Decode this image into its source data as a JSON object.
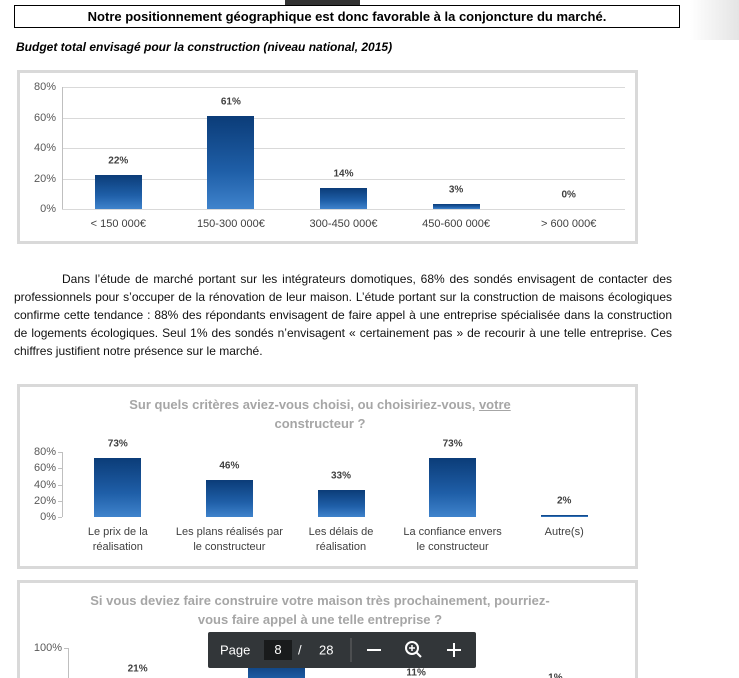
{
  "header": {
    "banner": "Notre positionnement géographique est donc favorable à la conjoncture du marché."
  },
  "chart1": {
    "type": "bar",
    "title": "Budget total envisagé pour la construction (niveau national, 2015)",
    "categories": [
      "< 150 000€",
      "150-300 000€",
      "300-450 000€",
      "450-600 000€",
      "> 600 000€"
    ],
    "values": [
      22,
      61,
      14,
      3,
      0
    ],
    "value_labels": [
      "22%",
      "61%",
      "14%",
      "3%",
      "0%"
    ],
    "ylim": [
      0,
      80
    ],
    "yticks": [
      {
        "value": 0,
        "label": "0%"
      },
      {
        "value": 20,
        "label": "20%"
      },
      {
        "value": 40,
        "label": "40%"
      },
      {
        "value": 60,
        "label": "60%"
      },
      {
        "value": 80,
        "label": "80%"
      }
    ],
    "color": "#1f5fa8",
    "grid": true
  },
  "paragraph": "Dans l’étude de marché portant sur les intégrateurs domotiques, 68% des sondés envisagent de contacter des professionnels pour s’occuper de la rénovation de leur maison. L’étude portant sur la construction de maisons écologiques confirme cette tendance : 88% des répondants envisagent de faire appel à une entreprise spécialisée dans la construction de logements écologiques. Seul 1% des sondés n’envisagent « certainement pas » de recourir à une telle entreprise. Ces chiffres justifient notre présence sur le marché.",
  "chart2": {
    "type": "bar",
    "title_parts": [
      "Sur quels critères aviez-vous choisi, ou choisiriez-vous,",
      "votre",
      "constructeur ?"
    ],
    "categories": [
      "Le prix de la réalisation",
      "Les plans réalisés par le constructeur",
      "Les délais de réalisation",
      "La confiance envers le constructeur",
      "Autre(s)"
    ],
    "values": [
      73,
      46,
      33,
      73,
      2
    ],
    "value_labels": [
      "73%",
      "46%",
      "33%",
      "73%",
      "2%"
    ],
    "ylim": [
      0,
      80
    ],
    "yticks": [
      {
        "value": 0,
        "label": "0%"
      },
      {
        "value": 20,
        "label": "20%"
      },
      {
        "value": 40,
        "label": "40%"
      },
      {
        "value": 60,
        "label": "60%"
      },
      {
        "value": 80,
        "label": "80%"
      }
    ],
    "color": "#1f5fa8",
    "grid": false
  },
  "chart3": {
    "type": "bar",
    "title": "Si vous deviez faire construire votre maison très prochainement, pourriez-vous faire appel à une telle entreprise ?",
    "values": [
      21,
      68,
      11,
      1
    ],
    "value_labels": [
      "21%",
      "68%",
      "11%",
      "1%"
    ],
    "ylim": [
      0,
      100
    ],
    "yticks": [
      {
        "value": 100,
        "label": "100%"
      }
    ],
    "color": "#1f5fa8",
    "grid": false
  },
  "toolbar": {
    "label": "Page",
    "current": 8,
    "separator": "/",
    "total": 28
  }
}
